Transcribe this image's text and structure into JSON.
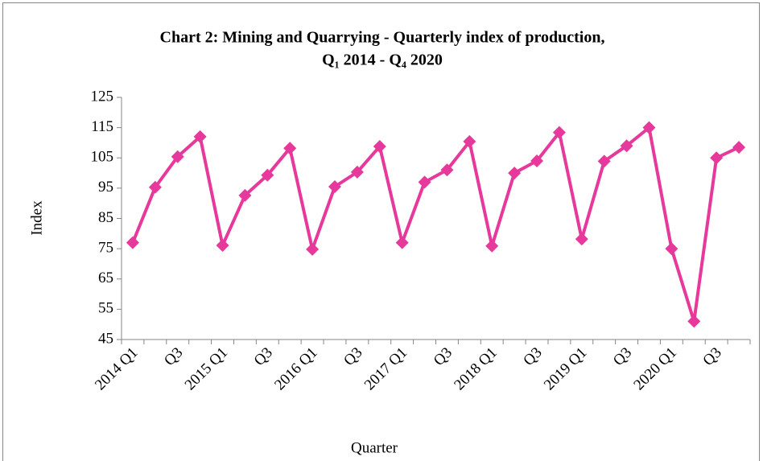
{
  "chart_data": {
    "type": "line",
    "title": [
      "Chart 2: Mining and Quarrying - Quarterly index of production,",
      "Q₁ 2014 - Q₄ 2020"
    ],
    "x_label": "Quarter",
    "y_label": "Index",
    "categories": [
      "2014 Q1",
      null,
      "Q3",
      null,
      "2015 Q1",
      null,
      "Q3",
      null,
      "2016 Q1",
      null,
      "Q3",
      null,
      "2017 Q1",
      null,
      "Q3",
      null,
      "2018 Q1",
      null,
      "Q3",
      null,
      "2019 Q1",
      null,
      "Q3",
      null,
      "2020 Q1",
      null,
      "Q3",
      null
    ],
    "values": [
      77,
      95.3,
      105.4,
      112,
      76.1,
      92.6,
      99.3,
      108.2,
      74.8,
      95.5,
      100.3,
      108.8,
      77,
      97,
      101,
      110.4,
      75.9,
      100,
      104,
      113.4,
      78.2,
      103.9,
      109,
      115,
      75,
      51,
      105,
      108.5
    ],
    "color": "#e6399b",
    "ylim": [
      45,
      125
    ],
    "yticks": [
      45,
      55,
      65,
      75,
      85,
      95,
      105,
      115,
      125
    ]
  }
}
